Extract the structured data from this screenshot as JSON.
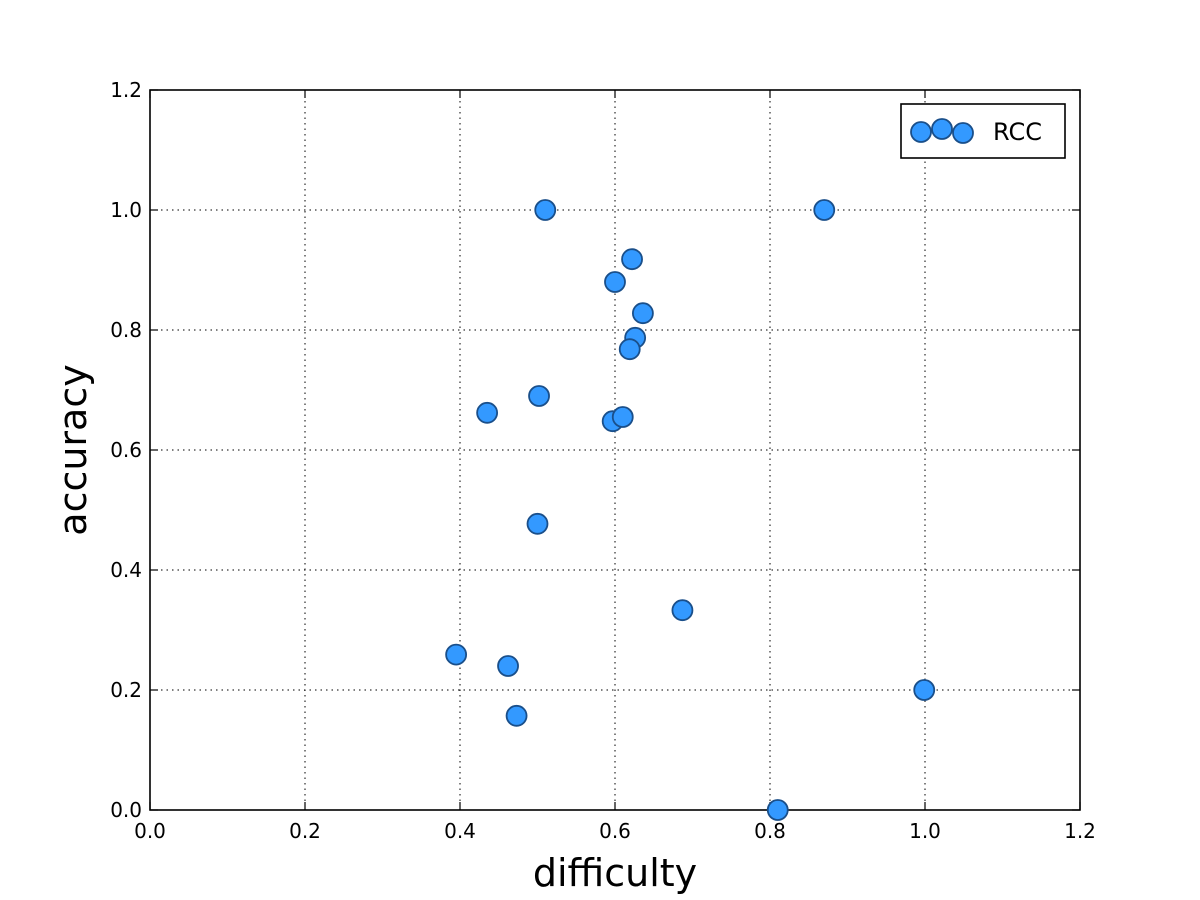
{
  "chart_data": {
    "type": "scatter",
    "xlabel": "difficulty",
    "ylabel": "accuracy",
    "xlim": [
      0.0,
      1.2
    ],
    "ylim": [
      0.0,
      1.2
    ],
    "x_ticks": [
      "0.0",
      "0.2",
      "0.4",
      "0.6",
      "0.8",
      "1.0",
      "1.2"
    ],
    "y_ticks": [
      "0.0",
      "0.2",
      "0.4",
      "0.6",
      "0.8",
      "1.0",
      "1.2"
    ],
    "grid": true,
    "legend_position": "top-right",
    "series": [
      {
        "name": "RCC",
        "color": "#3399ff",
        "edge_color": "#1a4f8a",
        "points": [
          {
            "x": 0.51,
            "y": 1.0
          },
          {
            "x": 0.87,
            "y": 1.0
          },
          {
            "x": 0.622,
            "y": 0.918
          },
          {
            "x": 0.6,
            "y": 0.88
          },
          {
            "x": 0.636,
            "y": 0.828
          },
          {
            "x": 0.626,
            "y": 0.787
          },
          {
            "x": 0.619,
            "y": 0.768
          },
          {
            "x": 0.502,
            "y": 0.69
          },
          {
            "x": 0.435,
            "y": 0.662
          },
          {
            "x": 0.597,
            "y": 0.648
          },
          {
            "x": 0.61,
            "y": 0.655
          },
          {
            "x": 0.5,
            "y": 0.477
          },
          {
            "x": 0.687,
            "y": 0.333
          },
          {
            "x": 0.395,
            "y": 0.259
          },
          {
            "x": 0.462,
            "y": 0.24
          },
          {
            "x": 0.473,
            "y": 0.157
          },
          {
            "x": 0.999,
            "y": 0.2
          },
          {
            "x": 0.81,
            "y": 0.0
          }
        ]
      }
    ]
  }
}
